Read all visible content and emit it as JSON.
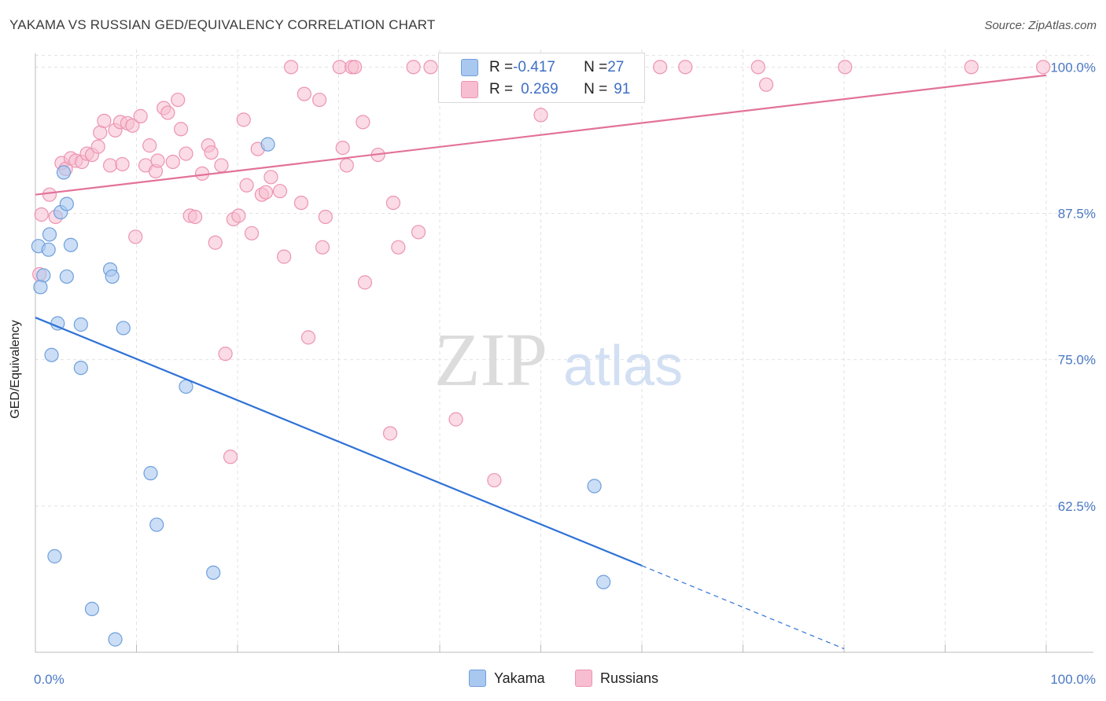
{
  "header": {
    "title": "YAKAMA VS RUSSIAN GED/EQUIVALENCY CORRELATION CHART",
    "source": "Source: ZipAtlas.com"
  },
  "watermark": {
    "zip": "ZIP",
    "atlas": "atlas"
  },
  "colors": {
    "yakama_fill": "#a9c8f0",
    "yakama_stroke": "#6f9fdc",
    "yakama_line": "#2f72d6",
    "russians_fill": "#f7bdd0",
    "russians_stroke": "#ec94b2",
    "russians_line": "#e2729a",
    "tick_label": "#4a78c4",
    "grid": "#e2e2e2"
  },
  "legend": {
    "rows": [
      {
        "r_label": "R = ",
        "r_value": "-0.417",
        "n_label": "N = ",
        "n_value": "27"
      },
      {
        "r_label": "R = ",
        "r_value": "0.269",
        "n_label": "N = ",
        "n_value": "91"
      }
    ]
  },
  "bottom_legend": {
    "yakama": "Yakama",
    "russians": "Russians"
  },
  "chart_data": {
    "type": "scatter",
    "title": "YAKAMA VS RUSSIAN GED/EQUIVALENCY CORRELATION CHART",
    "xlabel": "",
    "ylabel": "GED/Equivalency",
    "xlim": [
      0,
      100
    ],
    "ylim": [
      50.0,
      101.5
    ],
    "x_tick_labels": [
      "0.0%",
      "100.0%"
    ],
    "y_ticks": [
      62.5,
      75.0,
      87.5,
      100.0
    ],
    "y_tick_labels": [
      "62.5%",
      "75.0%",
      "87.5%",
      "100.0%"
    ],
    "grid": true,
    "legend_position": "top-center",
    "series": [
      {
        "name": "Yakama",
        "R": -0.417,
        "N": 27,
        "trend": {
          "x": [
            0,
            60
          ],
          "y": [
            78.6,
            57.4
          ],
          "dashed_to": [
            80,
            50.3
          ]
        },
        "points": [
          [
            0.3,
            84.7
          ],
          [
            0.8,
            82.2
          ],
          [
            0.5,
            81.2
          ],
          [
            1.3,
            84.4
          ],
          [
            1.4,
            85.7
          ],
          [
            2.8,
            91.0
          ],
          [
            2.5,
            87.6
          ],
          [
            3.1,
            88.3
          ],
          [
            3.5,
            84.8
          ],
          [
            3.1,
            82.1
          ],
          [
            2.2,
            78.1
          ],
          [
            1.6,
            75.4
          ],
          [
            4.5,
            78.0
          ],
          [
            4.5,
            74.3
          ],
          [
            7.4,
            82.7
          ],
          [
            7.6,
            82.1
          ],
          [
            8.7,
            77.7
          ],
          [
            23.0,
            93.4
          ],
          [
            14.9,
            72.7
          ],
          [
            11.4,
            65.3
          ],
          [
            12.0,
            60.9
          ],
          [
            1.9,
            58.2
          ],
          [
            17.6,
            56.8
          ],
          [
            5.6,
            53.7
          ],
          [
            7.9,
            51.1
          ],
          [
            55.3,
            64.2
          ],
          [
            56.2,
            56.0
          ]
        ]
      },
      {
        "name": "Russians",
        "R": 0.269,
        "N": 91,
        "trend": {
          "x": [
            0,
            100
          ],
          "y": [
            89.1,
            99.3
          ]
        },
        "points": [
          [
            0.4,
            82.3
          ],
          [
            0.6,
            87.4
          ],
          [
            1.4,
            89.1
          ],
          [
            2.0,
            87.2
          ],
          [
            2.6,
            91.8
          ],
          [
            3.0,
            91.3
          ],
          [
            3.5,
            92.2
          ],
          [
            4.0,
            92.0
          ],
          [
            4.6,
            91.9
          ],
          [
            5.1,
            92.6
          ],
          [
            5.6,
            92.5
          ],
          [
            6.2,
            93.2
          ],
          [
            6.4,
            94.4
          ],
          [
            6.8,
            95.4
          ],
          [
            7.4,
            91.6
          ],
          [
            7.9,
            94.6
          ],
          [
            8.4,
            95.3
          ],
          [
            8.6,
            91.7
          ],
          [
            9.1,
            95.2
          ],
          [
            9.6,
            95.0
          ],
          [
            9.9,
            85.5
          ],
          [
            10.4,
            95.8
          ],
          [
            10.9,
            91.6
          ],
          [
            11.3,
            93.3
          ],
          [
            11.9,
            91.1
          ],
          [
            12.1,
            92.0
          ],
          [
            12.7,
            96.5
          ],
          [
            13.1,
            96.1
          ],
          [
            13.6,
            91.9
          ],
          [
            14.1,
            97.2
          ],
          [
            14.4,
            94.7
          ],
          [
            14.9,
            92.6
          ],
          [
            15.3,
            87.3
          ],
          [
            15.8,
            87.2
          ],
          [
            16.5,
            90.9
          ],
          [
            17.1,
            93.3
          ],
          [
            17.4,
            92.7
          ],
          [
            17.8,
            85.0
          ],
          [
            18.4,
            91.6
          ],
          [
            18.8,
            75.5
          ],
          [
            19.3,
            66.7
          ],
          [
            19.6,
            87.0
          ],
          [
            20.1,
            87.3
          ],
          [
            20.6,
            95.5
          ],
          [
            20.9,
            89.9
          ],
          [
            21.4,
            85.8
          ],
          [
            22.0,
            93.0
          ],
          [
            22.4,
            89.1
          ],
          [
            22.8,
            89.3
          ],
          [
            23.3,
            90.6
          ],
          [
            24.2,
            89.4
          ],
          [
            24.6,
            83.8
          ],
          [
            25.3,
            100.0
          ],
          [
            26.3,
            88.4
          ],
          [
            26.6,
            97.7
          ],
          [
            27.0,
            76.9
          ],
          [
            28.1,
            97.2
          ],
          [
            28.4,
            84.6
          ],
          [
            28.7,
            87.2
          ],
          [
            30.1,
            100.0
          ],
          [
            30.4,
            93.1
          ],
          [
            30.8,
            91.6
          ],
          [
            31.3,
            100.0
          ],
          [
            31.6,
            100.0
          ],
          [
            32.4,
            95.3
          ],
          [
            32.6,
            81.6
          ],
          [
            33.9,
            92.5
          ],
          [
            35.1,
            68.7
          ],
          [
            35.4,
            88.4
          ],
          [
            35.9,
            84.6
          ],
          [
            37.4,
            100.0
          ],
          [
            37.9,
            85.9
          ],
          [
            39.1,
            100.0
          ],
          [
            41.1,
            100.0
          ],
          [
            41.6,
            69.9
          ],
          [
            43.1,
            100.0
          ],
          [
            45.4,
            64.7
          ],
          [
            47.5,
            100.0
          ],
          [
            50.0,
            95.9
          ],
          [
            51.0,
            100.0
          ],
          [
            53.1,
            100.0
          ],
          [
            56.9,
            100.0
          ],
          [
            59.5,
            100.0
          ],
          [
            61.8,
            100.0
          ],
          [
            64.3,
            100.0
          ],
          [
            71.5,
            100.0
          ],
          [
            72.3,
            98.5
          ],
          [
            80.1,
            100.0
          ],
          [
            92.6,
            100.0
          ],
          [
            99.7,
            100.0
          ],
          [
            40.9,
            100.0
          ]
        ]
      }
    ]
  }
}
